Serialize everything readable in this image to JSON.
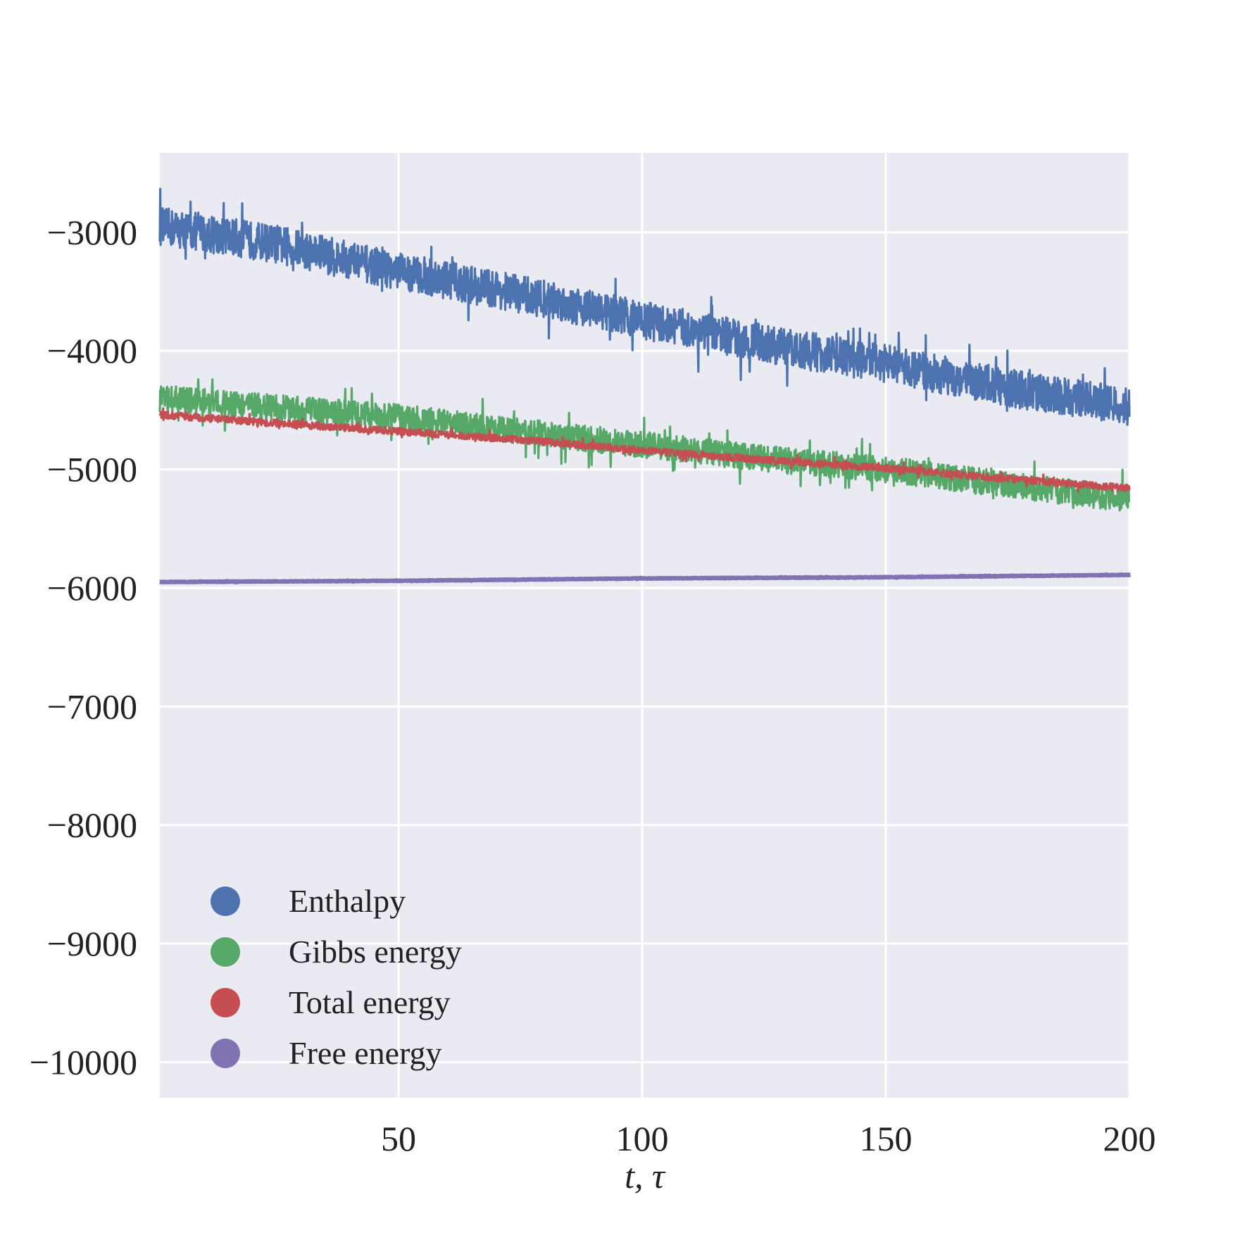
{
  "chart_data": {
    "type": "line",
    "title": "",
    "xlabel": "t, τ",
    "ylabel": "",
    "xlim": [
      1,
      200
    ],
    "ylim": [
      -10300,
      -2330
    ],
    "xticks": [
      50,
      100,
      150,
      200
    ],
    "xtick_labels": [
      "50",
      "100",
      "150",
      "200"
    ],
    "yticks": [
      -3000,
      -4000,
      -5000,
      -6000,
      -7000,
      -8000,
      -9000,
      -10000
    ],
    "ytick_labels": [
      "−3000",
      "−4000",
      "−5000",
      "−6000",
      "−7000",
      "−8000",
      "−9000",
      "−10000"
    ],
    "grid": true,
    "background": "#eaeaf2",
    "legend_position": "lower-left",
    "series": [
      {
        "name": "Enthalpy",
        "color": "#4c72b0",
        "x": [
          1,
          25,
          50,
          75,
          100,
          125,
          150,
          175,
          200
        ],
        "y": [
          -2950,
          -3100,
          -3330,
          -3520,
          -3740,
          -3940,
          -4110,
          -4310,
          -4470
        ],
        "noise_amplitude": 160
      },
      {
        "name": "Gibbs energy",
        "color": "#55a868",
        "x": [
          1,
          25,
          50,
          75,
          100,
          125,
          150,
          175,
          200
        ],
        "y": [
          -4400,
          -4480,
          -4560,
          -4680,
          -4790,
          -4910,
          -5000,
          -5130,
          -5250
        ],
        "noise_amplitude": 110
      },
      {
        "name": "Total energy",
        "color": "#c44e52",
        "x": [
          1,
          25,
          50,
          75,
          100,
          125,
          150,
          175,
          200
        ],
        "y": [
          -4540,
          -4610,
          -4680,
          -4750,
          -4840,
          -4920,
          -4990,
          -5080,
          -5160
        ],
        "noise_amplitude": 30
      },
      {
        "name": "Free energy",
        "color": "#8172b3",
        "x": [
          1,
          50,
          100,
          150,
          200
        ],
        "y": [
          -5950,
          -5940,
          -5920,
          -5910,
          -5890
        ],
        "noise_amplitude": 3
      }
    ]
  }
}
